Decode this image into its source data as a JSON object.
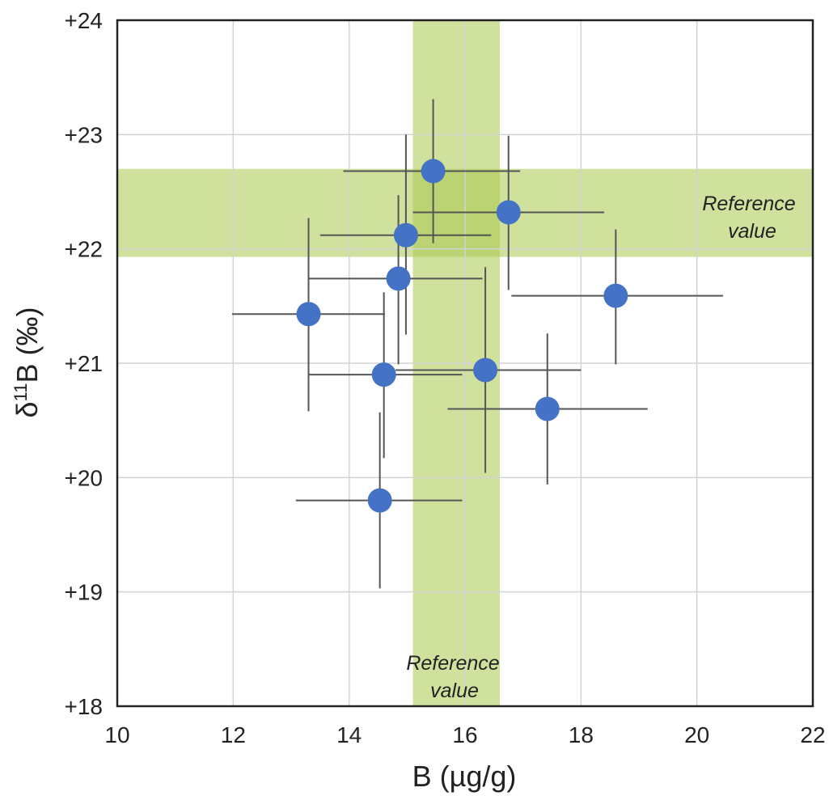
{
  "chart_data": {
    "type": "scatter",
    "xlabel": "B (µg/g)",
    "ylabel_prefix": "δ",
    "ylabel_superscript": "11",
    "ylabel_suffix": "B (‰)",
    "xlim": [
      10,
      22
    ],
    "ylim": [
      18,
      24
    ],
    "x_ticks": [
      10,
      12,
      14,
      16,
      18,
      20,
      22
    ],
    "x_tick_labels": [
      "10",
      "12",
      "14",
      "16",
      "18",
      "20",
      "22"
    ],
    "y_ticks": [
      18,
      19,
      20,
      21,
      22,
      23,
      24
    ],
    "y_tick_labels": [
      "+18",
      "+19",
      "+20",
      "+21",
      "+22",
      "+23",
      "+24"
    ],
    "grid": true,
    "reference_bands": {
      "x_range": [
        15.1,
        16.6
      ],
      "y_range": [
        21.93,
        22.7
      ],
      "x_band_label_line1": "Reference",
      "x_band_label_line2": "value",
      "y_band_label_line1": "Reference",
      "y_band_label_line2": "value",
      "color": "#a9c84f"
    },
    "points": [
      {
        "x": 15.45,
        "y": 22.68,
        "xerr": [
          13.9,
          16.95
        ],
        "yerr": [
          22.05,
          23.31
        ]
      },
      {
        "x": 16.75,
        "y": 22.32,
        "xerr": [
          15.1,
          18.4
        ],
        "yerr": [
          21.64,
          22.99
        ]
      },
      {
        "x": 14.98,
        "y": 22.12,
        "xerr": [
          13.5,
          16.45
        ],
        "yerr": [
          21.25,
          23.0
        ]
      },
      {
        "x": 14.85,
        "y": 21.74,
        "xerr": [
          13.3,
          16.3
        ],
        "yerr": [
          20.99,
          22.47
        ]
      },
      {
        "x": 18.6,
        "y": 21.59,
        "xerr": [
          16.8,
          20.45
        ],
        "yerr": [
          20.99,
          22.17
        ]
      },
      {
        "x": 13.3,
        "y": 21.43,
        "xerr": [
          11.98,
          14.62
        ],
        "yerr": [
          20.58,
          22.27
        ]
      },
      {
        "x": 14.6,
        "y": 20.9,
        "xerr": [
          13.3,
          15.95
        ],
        "yerr": [
          20.17,
          21.62
        ]
      },
      {
        "x": 16.35,
        "y": 20.94,
        "xerr": [
          14.8,
          18.0
        ],
        "yerr": [
          20.04,
          21.84
        ]
      },
      {
        "x": 17.42,
        "y": 20.6,
        "xerr": [
          15.7,
          19.15
        ],
        "yerr": [
          19.94,
          21.26
        ]
      },
      {
        "x": 14.53,
        "y": 19.8,
        "xerr": [
          13.08,
          15.95
        ],
        "yerr": [
          19.03,
          20.57
        ]
      }
    ],
    "marker_color": "#4472c4",
    "errorbar_color": "#555555"
  }
}
